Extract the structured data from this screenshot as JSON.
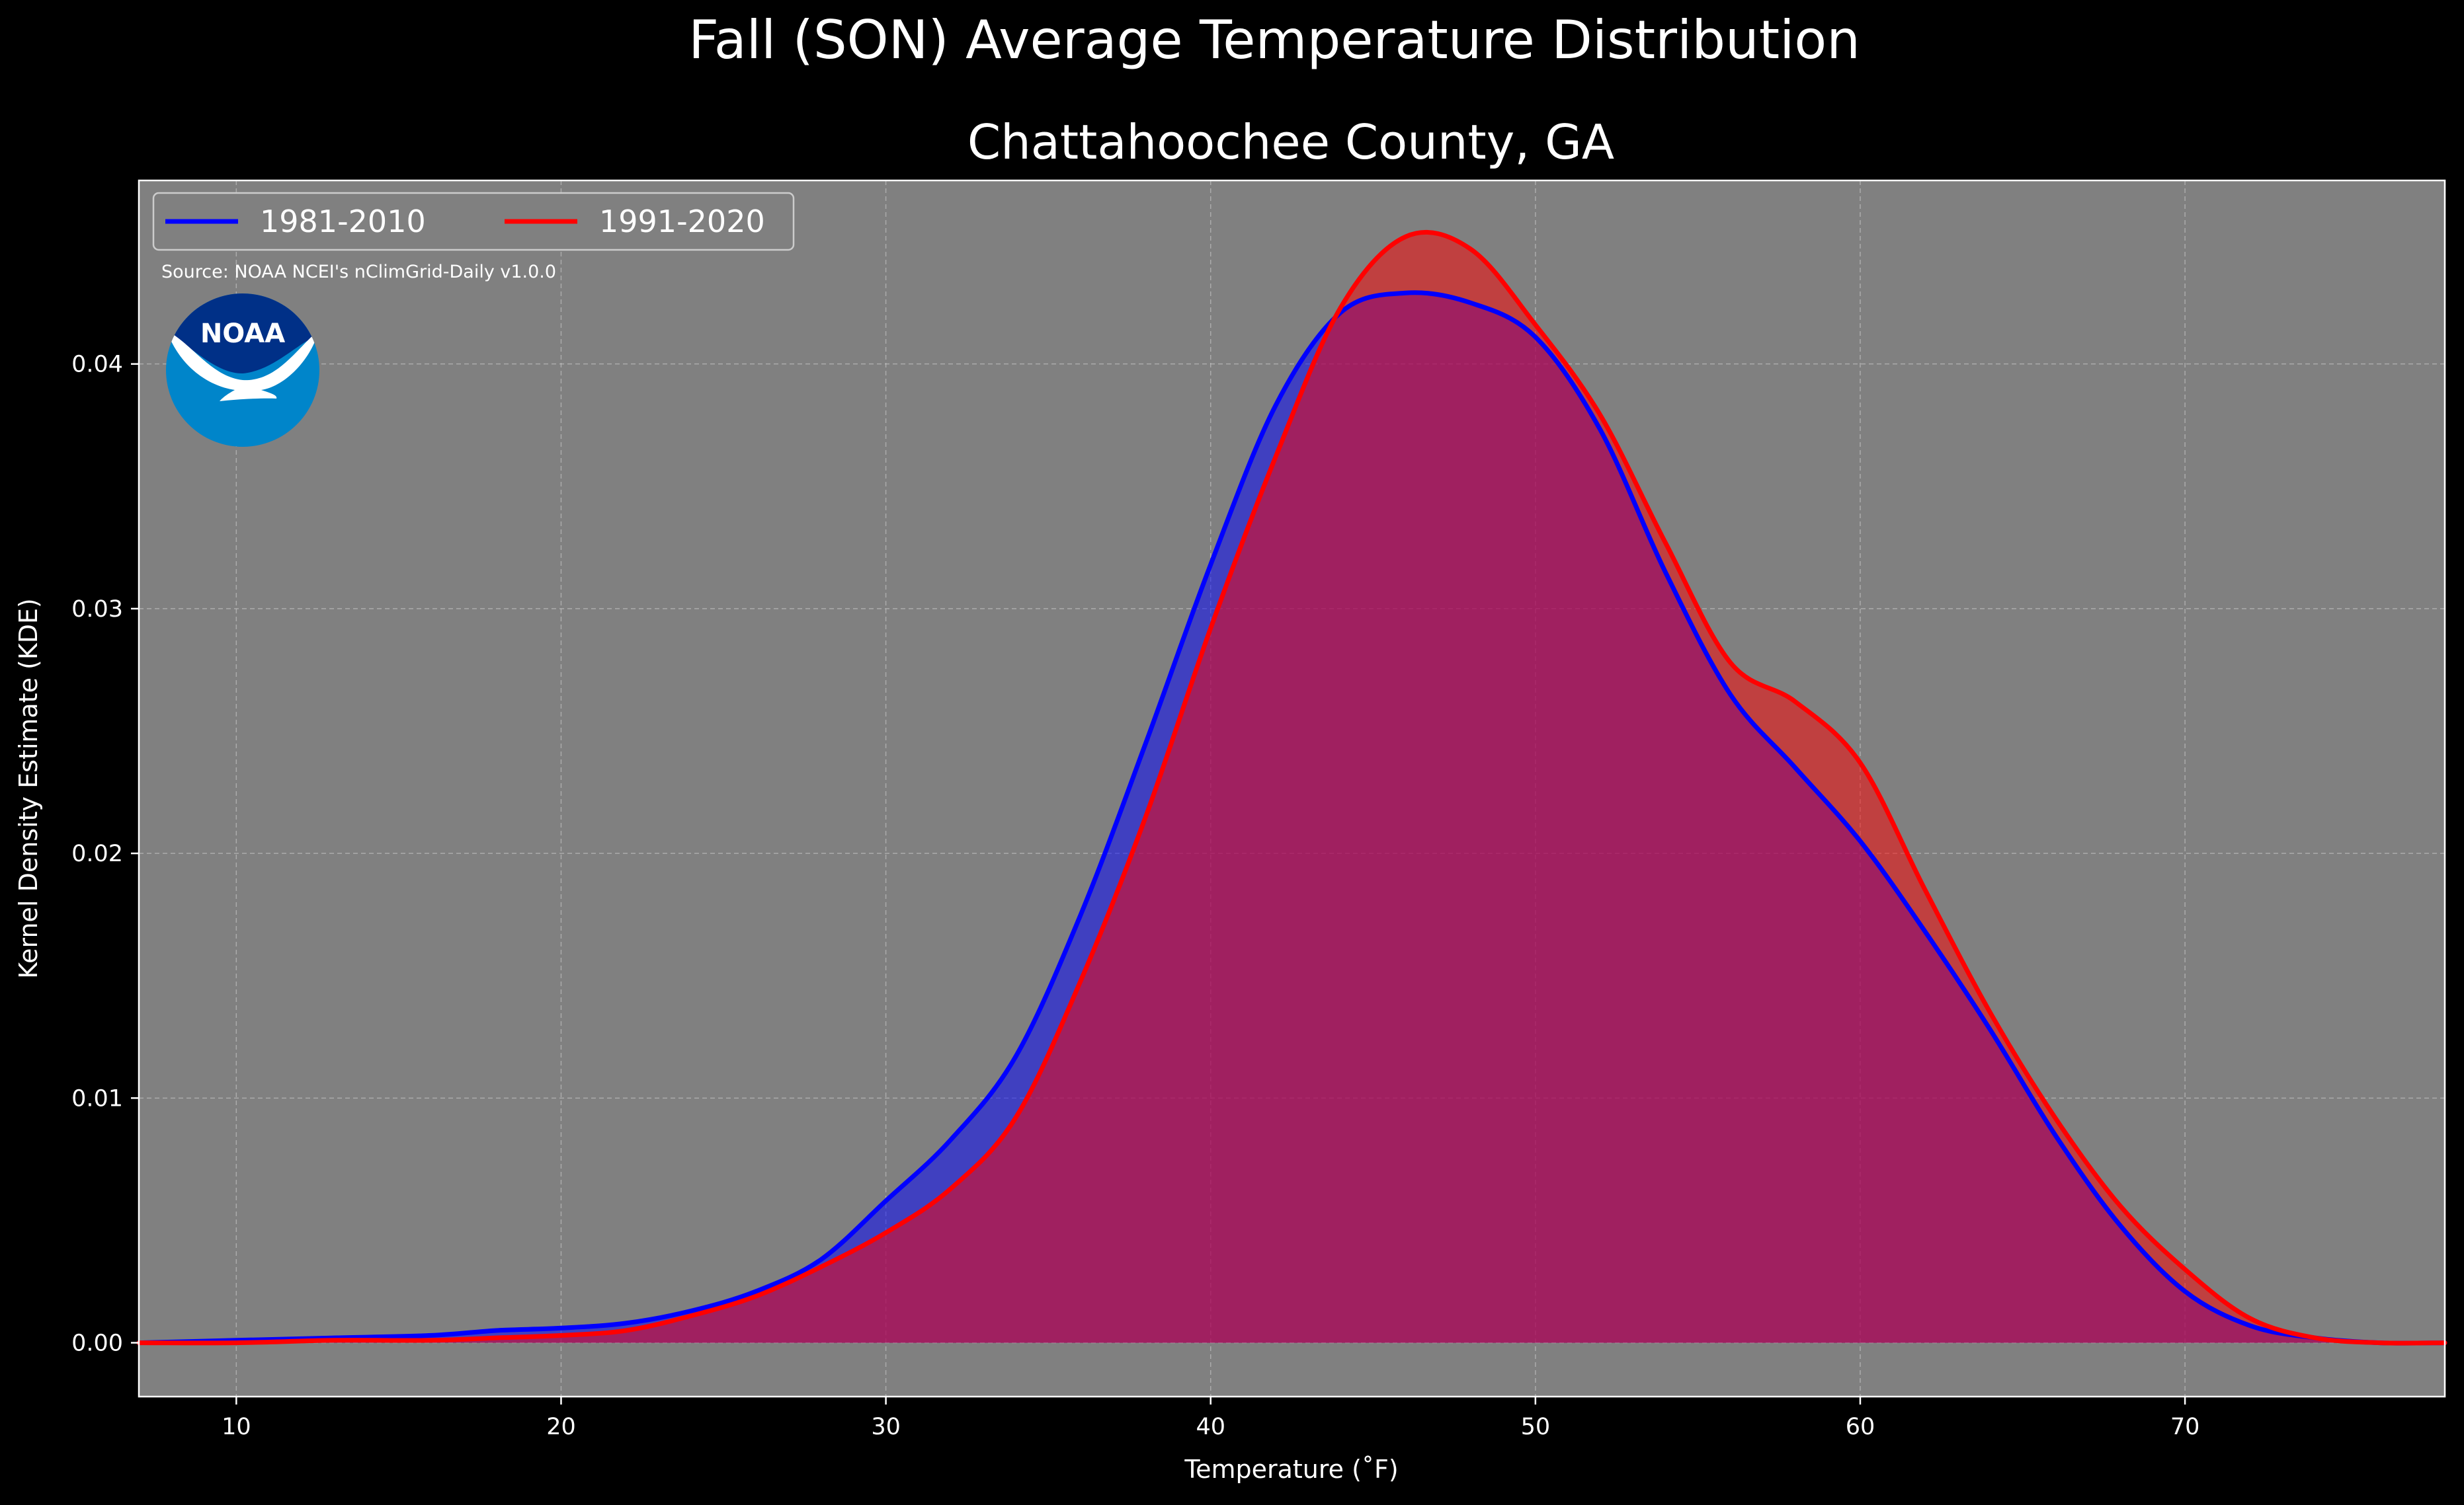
{
  "chart_data": {
    "type": "area",
    "title": "Fall (SON) Average Temperature Distribution",
    "subtitle": "Chattahoochee County, GA",
    "xlabel": "Temperature ($^\\circ$F)",
    "xlabel_display": "Temperature (˚F)",
    "ylabel": "Kernel Density Estimate (KDE)",
    "xlim": [
      7,
      78
    ],
    "ylim": [
      -0.0022,
      0.0475
    ],
    "xticks": [
      10,
      20,
      30,
      40,
      50,
      60,
      70
    ],
    "yticks": [
      0.0,
      0.01,
      0.02,
      0.03,
      0.04
    ],
    "ytick_labels": [
      "0.00",
      "0.01",
      "0.02",
      "0.03",
      "0.04"
    ],
    "grid": true,
    "legend_position": "upper-left",
    "source_text": "Source: NOAA NCEI's nClimGrid-Daily v1.0.0",
    "logo_text": "NOAA",
    "background_color": "#808080",
    "series": [
      {
        "name": "1981-2010",
        "color": "#0000ff",
        "x": [
          7,
          10,
          13,
          16,
          18,
          20,
          22,
          24,
          26,
          28,
          30,
          32,
          34,
          36,
          38,
          40,
          42,
          44,
          46,
          48,
          50,
          52,
          54,
          56,
          58,
          60,
          62,
          64,
          66,
          68,
          70,
          72,
          74,
          76,
          78
        ],
        "y": [
          0.0,
          0.0001,
          0.0002,
          0.0003,
          0.0005,
          0.0006,
          0.0008,
          0.0013,
          0.0021,
          0.0034,
          0.0058,
          0.0083,
          0.0117,
          0.0175,
          0.0245,
          0.0318,
          0.0383,
          0.0421,
          0.0429,
          0.0425,
          0.0411,
          0.0373,
          0.0315,
          0.0265,
          0.0235,
          0.0205,
          0.0168,
          0.0128,
          0.0085,
          0.0048,
          0.0021,
          0.0007,
          0.0002,
          0.0,
          0.0
        ]
      },
      {
        "name": "1991-2020",
        "color": "#ff0000",
        "x": [
          7,
          10,
          13,
          16,
          18,
          20,
          22,
          24,
          26,
          28,
          30,
          32,
          34,
          36,
          38,
          40,
          42,
          44,
          46,
          48,
          50,
          52,
          54,
          56,
          58,
          60,
          62,
          64,
          66,
          68,
          70,
          72,
          74,
          76,
          78
        ],
        "y": [
          0.0,
          0.0,
          0.0001,
          0.0001,
          0.0002,
          0.0003,
          0.0005,
          0.0011,
          0.0019,
          0.0031,
          0.0045,
          0.0063,
          0.0092,
          0.0148,
          0.0215,
          0.0292,
          0.0362,
          0.0423,
          0.0452,
          0.0447,
          0.0416,
          0.0379,
          0.0327,
          0.0278,
          0.0262,
          0.0237,
          0.0185,
          0.0135,
          0.0092,
          0.0056,
          0.003,
          0.001,
          0.0002,
          0.0,
          0.0
        ]
      }
    ]
  }
}
